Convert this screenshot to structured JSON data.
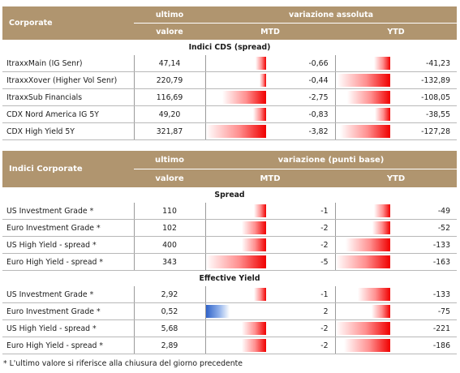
{
  "table1": {
    "header": {
      "label": "Corporate",
      "ultimo_top": "ultimo",
      "ultimo_bottom": "valore",
      "variation": "variazione assoluta",
      "mtd": "MTD",
      "ytd": "YTD"
    },
    "section": "Indici CDS (spread)",
    "rows": [
      {
        "name": "ItraxxMain (IG Senr)",
        "value": "47,14",
        "mtd": "-0,66",
        "ytd": "-41,23",
        "mtd_level": 0.17,
        "ytd_level": 0.3
      },
      {
        "name": "ItraxxXover (Higher Vol Senr)",
        "value": "220,79",
        "mtd": "-0,44",
        "ytd": "-132,89",
        "mtd_level": 0.11,
        "ytd_level": 0.96
      },
      {
        "name": "ItraxxSub Financials",
        "value": "116,69",
        "mtd": "-2,75",
        "ytd": "-108,05",
        "mtd_level": 0.72,
        "ytd_level": 0.78
      },
      {
        "name": "CDX Nord America IG 5Y",
        "value": "49,20",
        "mtd": "-0,83",
        "ytd": "-38,55",
        "mtd_level": 0.22,
        "ytd_level": 0.28
      },
      {
        "name": "CDX High Yield 5Y",
        "value": "321,87",
        "mtd": "-3,82",
        "ytd": "-127,28",
        "mtd_level": 1.0,
        "ytd_level": 0.92
      }
    ]
  },
  "table2": {
    "header": {
      "label": "Indici Corporate",
      "ultimo_top": "ultimo",
      "ultimo_bottom": "valore",
      "variation": "variazione (punti base)",
      "mtd": "MTD",
      "ytd": "YTD"
    },
    "section_spread": "Spread",
    "spread_rows": [
      {
        "name": "US Investment Grade *",
        "value": "110",
        "mtd": "-1",
        "ytd": "-49",
        "mtd_level": 0.2,
        "ytd_level": 0.3
      },
      {
        "name": "Euro Investment Grade *",
        "value": "102",
        "mtd": "-2",
        "ytd": "-52",
        "mtd_level": 0.4,
        "ytd_level": 0.32
      },
      {
        "name": "US High Yield  - spread *",
        "value": "400",
        "mtd": "-2",
        "ytd": "-133",
        "mtd_level": 0.4,
        "ytd_level": 0.82
      },
      {
        "name": "Euro High Yield  - spread *",
        "value": "343",
        "mtd": "-5",
        "ytd": "-163",
        "mtd_level": 1.0,
        "ytd_level": 1.0
      }
    ],
    "section_yield": "Effective Yield",
    "yield_rows": [
      {
        "name": "US Investment Grade *",
        "value": "2,92",
        "mtd": "-1",
        "ytd": "-133",
        "mtd_level": 0.2,
        "ytd_level": 0.6
      },
      {
        "name": "Euro Investment Grade *",
        "value": "0,52",
        "mtd": "2",
        "ytd": "-75",
        "mtd_level": 0.4,
        "ytd_level": 0.34,
        "mtd_positive": true
      },
      {
        "name": "US High Yield  - spread *",
        "value": "5,68",
        "mtd": "-2",
        "ytd": "-221",
        "mtd_level": 0.4,
        "ytd_level": 1.0
      },
      {
        "name": "Euro High Yield  - spread *",
        "value": "2,89",
        "mtd": "-2",
        "ytd": "-186",
        "mtd_level": 0.4,
        "ytd_level": 0.84
      }
    ]
  },
  "footnote": "* L'ultimo valore si riferisce alla chiusura del giorno precedente",
  "colors": {
    "header_bg": "#b0956f",
    "neg_bar": "#f00000",
    "pos_bar": "#2f62c8"
  }
}
